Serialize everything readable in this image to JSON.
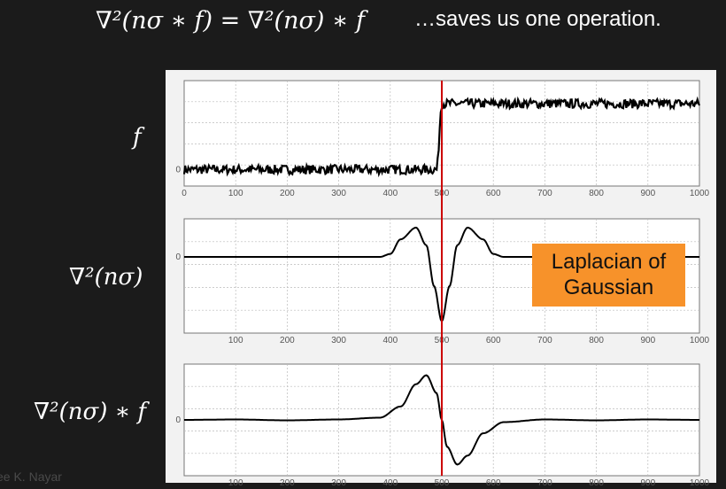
{
  "slide": {
    "equation": "∇²(nσ ∗ f) = ∇²(nσ) ∗ f",
    "subtitle": "…saves us one operation.",
    "label_f": "f",
    "label_log": "∇²(nσ)",
    "label_conv": "∇²(nσ) ∗ f",
    "credit": "ee K. Nayar",
    "annotation_line1": "Laplacian of",
    "annotation_line2": "Gaussian"
  },
  "colors": {
    "background": "#1b1b1b",
    "figure_bg": "#f2f2f2",
    "plot_line": "#000000",
    "marker_line": "#cc0000",
    "annotation_bg": "#f7922a"
  },
  "chart_data": [
    {
      "type": "line",
      "title": "",
      "xlabel": "",
      "ylabel": "",
      "xlim": [
        0,
        1000
      ],
      "x_ticks": [
        0,
        100,
        200,
        300,
        400,
        500,
        600,
        700,
        800,
        900,
        1000
      ],
      "y_tick_labels": [
        "0"
      ],
      "grid": true,
      "series": [
        {
          "x": [
            0,
            490,
            500,
            510,
            1000
          ],
          "y": [
            0,
            0,
            1,
            1,
            1
          ],
          "noise": "high-frequency noise on both levels"
        }
      ],
      "marker_line_x": 500
    },
    {
      "type": "line",
      "title": "",
      "xlabel": "",
      "ylabel": "",
      "xlim": [
        0,
        1000
      ],
      "x_ticks": [
        100,
        200,
        300,
        400,
        500,
        600,
        700,
        800,
        900,
        1000
      ],
      "y_tick_labels": [
        "0"
      ],
      "grid": true,
      "series": [
        {
          "x": [
            0,
            380,
            400,
            420,
            450,
            470,
            485,
            500,
            515,
            530,
            550,
            580,
            600,
            620,
            1000
          ],
          "y": [
            0,
            0,
            0.05,
            0.3,
            0.5,
            0.2,
            -0.5,
            -1.1,
            -0.5,
            0.2,
            0.5,
            0.3,
            0.05,
            0,
            0
          ]
        }
      ],
      "marker_line_x": 500
    },
    {
      "type": "line",
      "title": "",
      "xlabel": "",
      "ylabel": "",
      "xlim": [
        0,
        1000
      ],
      "x_ticks": [
        100,
        200,
        300,
        400,
        500,
        600,
        700,
        800,
        900,
        1000
      ],
      "y_tick_labels": [
        "0"
      ],
      "grid": true,
      "series": [
        {
          "x": [
            0,
            100,
            200,
            300,
            380,
            420,
            450,
            470,
            490,
            500,
            510,
            530,
            550,
            580,
            620,
            700,
            800,
            900,
            1000
          ],
          "y": [
            0,
            0.01,
            -0.01,
            0.01,
            0.05,
            0.3,
            0.8,
            1.0,
            0.6,
            0,
            -0.6,
            -1.0,
            -0.8,
            -0.3,
            -0.05,
            0.01,
            -0.01,
            0.01,
            0
          ]
        }
      ],
      "marker_line_x": 500
    }
  ]
}
